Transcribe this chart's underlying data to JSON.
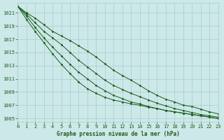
{
  "xlabel": "Graphe pression niveau de la mer (hPa)",
  "xlim": [
    0,
    23
  ],
  "ylim": [
    1004.5,
    1022.5
  ],
  "yticks": [
    1005,
    1007,
    1009,
    1011,
    1013,
    1015,
    1017,
    1019,
    1021
  ],
  "xticks": [
    0,
    1,
    2,
    3,
    4,
    5,
    6,
    7,
    8,
    9,
    10,
    11,
    12,
    13,
    14,
    15,
    16,
    17,
    18,
    19,
    20,
    21,
    22,
    23
  ],
  "background_color": "#cce8e8",
  "grid_color": "#aacccc",
  "line_color": "#1a5c1a",
  "lines": [
    [
      1022.0,
      1021.0,
      1020.2,
      1019.2,
      1018.2,
      1017.5,
      1016.8,
      1016.0,
      1015.2,
      1014.3,
      1013.3,
      1012.3,
      1011.5,
      1010.8,
      1010.0,
      1009.2,
      1008.5,
      1007.9,
      1007.5,
      1007.0,
      1006.8,
      1006.4,
      1006.0,
      1005.7
    ],
    [
      1022.0,
      1020.8,
      1019.5,
      1018.2,
      1017.2,
      1016.2,
      1015.0,
      1013.8,
      1012.8,
      1011.8,
      1010.8,
      1010.0,
      1009.4,
      1008.8,
      1008.3,
      1007.8,
      1007.3,
      1006.9,
      1006.5,
      1006.2,
      1005.9,
      1005.6,
      1005.4,
      1005.2
    ],
    [
      1022.0,
      1020.5,
      1018.8,
      1017.2,
      1015.8,
      1014.5,
      1013.2,
      1012.0,
      1011.0,
      1010.0,
      1009.2,
      1008.5,
      1008.0,
      1007.5,
      1007.2,
      1006.8,
      1006.5,
      1006.2,
      1006.0,
      1005.8,
      1005.6,
      1005.4,
      1005.2,
      1005.0
    ],
    [
      1022.0,
      1020.0,
      1018.2,
      1016.5,
      1014.8,
      1013.2,
      1011.8,
      1010.5,
      1009.5,
      1008.8,
      1008.2,
      1007.8,
      1007.5,
      1007.2,
      1007.0,
      1006.7,
      1006.5,
      1006.2,
      1006.0,
      1005.8,
      1005.6,
      1005.4,
      1005.2,
      1005.0
    ]
  ]
}
